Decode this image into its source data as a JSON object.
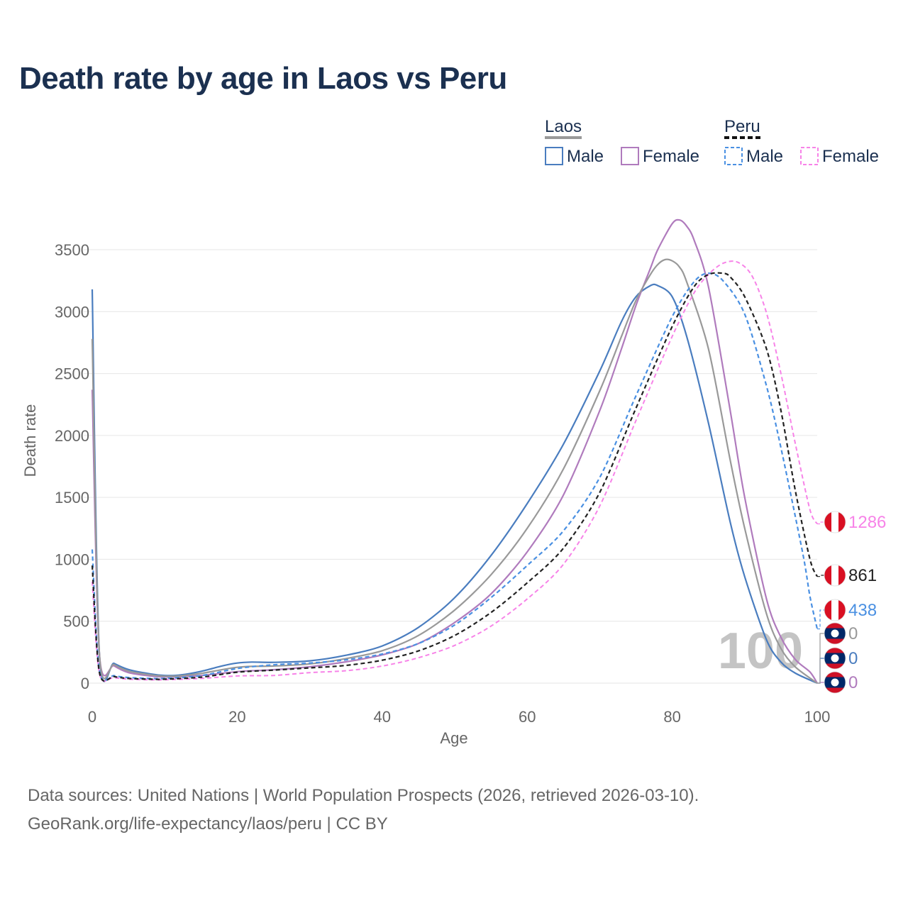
{
  "title": "Death rate by age in Laos vs Peru",
  "source_line1": "Data sources: United Nations | World Population Prospects (2026, retrieved 2026-03-10).",
  "source_line2": "GeoRank.org/life-expectancy/laos/peru | CC BY",
  "legend": {
    "groups": [
      {
        "name": "Laos",
        "underline_color": "#999999",
        "underline_style": "solid",
        "items": [
          {
            "label": "Male",
            "color": "#4a7dbf",
            "dashed": false
          },
          {
            "label": "Female",
            "color": "#b07bbd",
            "dashed": false
          }
        ]
      },
      {
        "name": "Peru",
        "underline_color": "#111111",
        "underline_style": "dashed",
        "items": [
          {
            "label": "Male",
            "color": "#4a90e2",
            "dashed": true
          },
          {
            "label": "Female",
            "color": "#f783e8",
            "dashed": true
          }
        ]
      }
    ]
  },
  "chart_data": {
    "type": "line",
    "title": "Death rate by age in Laos vs Peru",
    "xlabel": "Age",
    "ylabel": "Death rate",
    "xlim": [
      0,
      100
    ],
    "ylim": [
      0,
      3750
    ],
    "x_ticks": [
      0,
      20,
      40,
      60,
      80,
      100
    ],
    "y_ticks": [
      0,
      500,
      1000,
      1500,
      2000,
      2500,
      3000,
      3500
    ],
    "grid": true,
    "watermark": "100",
    "series": [
      {
        "name": "Laos Male",
        "country": "Laos",
        "color": "#4a7dbf",
        "dashed": false,
        "width": 2.2,
        "x": [
          0,
          1,
          3,
          5,
          8,
          10,
          12,
          15,
          18,
          20,
          22,
          25,
          30,
          35,
          40,
          45,
          50,
          55,
          60,
          65,
          70,
          73,
          75,
          77,
          78,
          80,
          82,
          85,
          88,
          90,
          93,
          95,
          97,
          100
        ],
        "y": [
          3180,
          230,
          160,
          110,
          75,
          62,
          65,
          95,
          140,
          162,
          170,
          168,
          180,
          225,
          300,
          450,
          690,
          1030,
          1450,
          1930,
          2520,
          2920,
          3120,
          3210,
          3210,
          3120,
          2800,
          2100,
          1300,
          860,
          350,
          170,
          80,
          0
        ],
        "end_value": "0",
        "end_value_color": "#4a7dbf",
        "flag": "laos"
      },
      {
        "name": "Laos Female",
        "country": "Laos",
        "color": "#b07bbd",
        "dashed": false,
        "width": 2.2,
        "x": [
          0,
          1,
          3,
          5,
          8,
          10,
          12,
          15,
          18,
          20,
          22,
          25,
          30,
          35,
          40,
          45,
          50,
          55,
          60,
          65,
          70,
          73,
          75,
          77,
          78,
          80,
          81,
          82,
          83,
          85,
          88,
          90,
          93,
          95,
          97,
          99,
          100
        ],
        "y": [
          2370,
          230,
          140,
          85,
          58,
          50,
          52,
          62,
          80,
          93,
          100,
          108,
          132,
          172,
          228,
          320,
          490,
          720,
          1060,
          1520,
          2200,
          2700,
          3050,
          3350,
          3500,
          3710,
          3740,
          3690,
          3580,
          3200,
          2200,
          1500,
          680,
          370,
          190,
          90,
          0
        ],
        "end_value": "0",
        "end_value_color": "#b07bbd",
        "flag": "laos"
      },
      {
        "name": "Laos Both",
        "country": "Laos",
        "color": "#999999",
        "dashed": false,
        "width": 2.2,
        "x": [
          0,
          1,
          3,
          5,
          8,
          10,
          12,
          15,
          18,
          20,
          22,
          25,
          30,
          35,
          40,
          45,
          50,
          55,
          60,
          65,
          70,
          73,
          75,
          77,
          78,
          79,
          80,
          81,
          82,
          85,
          88,
          90,
          93,
          95,
          97,
          100
        ],
        "y": [
          2780,
          230,
          150,
          97,
          67,
          56,
          58,
          78,
          110,
          128,
          135,
          138,
          155,
          198,
          262,
          385,
          590,
          875,
          1250,
          1730,
          2360,
          2800,
          3090,
          3300,
          3380,
          3420,
          3410,
          3360,
          3240,
          2700,
          1800,
          1250,
          560,
          280,
          130,
          0
        ],
        "end_value": "0",
        "end_value_color": "#999999",
        "flag": "laos"
      },
      {
        "name": "Peru Male",
        "country": "Peru",
        "color": "#4a90e2",
        "dashed": true,
        "width": 2.2,
        "x": [
          0,
          1,
          3,
          5,
          8,
          10,
          15,
          20,
          25,
          30,
          35,
          40,
          45,
          50,
          55,
          60,
          65,
          70,
          75,
          80,
          83,
          85,
          87,
          90,
          93,
          95,
          98,
          99,
          100
        ],
        "y": [
          1080,
          95,
          60,
          45,
          38,
          38,
          60,
          118,
          148,
          162,
          188,
          235,
          320,
          470,
          690,
          950,
          1230,
          1660,
          2320,
          2960,
          3240,
          3310,
          3250,
          2980,
          2400,
          1900,
          1050,
          700,
          438
        ],
        "end_value": "438",
        "end_value_color": "#4a90e2",
        "flag": "peru"
      },
      {
        "name": "Peru Female",
        "country": "Peru",
        "color": "#f783e8",
        "dashed": true,
        "width": 2.0,
        "x": [
          0,
          1,
          3,
          5,
          8,
          10,
          15,
          20,
          25,
          30,
          35,
          40,
          45,
          50,
          55,
          60,
          65,
          70,
          75,
          80,
          83,
          85,
          87,
          89,
          91,
          93,
          95,
          97,
          99,
          100
        ],
        "y": [
          820,
          75,
          45,
          32,
          27,
          27,
          38,
          58,
          62,
          85,
          100,
          138,
          205,
          305,
          460,
          680,
          960,
          1430,
          2120,
          2800,
          3150,
          3300,
          3390,
          3400,
          3290,
          2990,
          2500,
          1930,
          1400,
          1286
        ],
        "end_value": "1286",
        "end_value_color": "#f783e8",
        "flag": "peru"
      },
      {
        "name": "Peru Both",
        "country": "Peru",
        "color": "#222222",
        "dashed": true,
        "width": 2.2,
        "x": [
          0,
          1,
          3,
          5,
          8,
          10,
          15,
          20,
          25,
          30,
          35,
          40,
          45,
          50,
          55,
          60,
          65,
          70,
          75,
          80,
          83,
          85,
          87,
          88,
          90,
          93,
          95,
          97,
          99,
          100
        ],
        "y": [
          950,
          85,
          53,
          38,
          32,
          32,
          48,
          88,
          105,
          123,
          143,
          185,
          260,
          385,
          570,
          810,
          1090,
          1540,
          2220,
          2880,
          3200,
          3300,
          3310,
          3280,
          3120,
          2700,
          2200,
          1550,
          1000,
          861
        ],
        "end_value": "861",
        "end_value_color": "#222222",
        "flag": "peru"
      }
    ]
  }
}
